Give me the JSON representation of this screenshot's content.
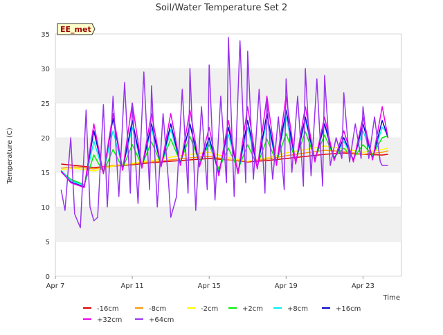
{
  "chart_data": {
    "type": "line",
    "title": "Soil/Water Temperature Set 2",
    "xlabel": "Time",
    "ylabel": "Temperature (C)",
    "badge": "EE_met",
    "x_unit": "days since Apr 7",
    "xlim": [
      0,
      18
    ],
    "ylim": [
      0,
      35
    ],
    "y_ticks": [
      0,
      5,
      10,
      15,
      20,
      25,
      30,
      35
    ],
    "x_ticks": [
      {
        "value": 0,
        "label": "Apr 7"
      },
      {
        "value": 4,
        "label": "Apr 11"
      },
      {
        "value": 8,
        "label": "Apr 15"
      },
      {
        "value": 12,
        "label": "Apr 19"
      },
      {
        "value": 16,
        "label": "Apr 23"
      }
    ],
    "grid": "horizontal bands",
    "legend_position": "bottom",
    "series": [
      {
        "name": "-16cm",
        "color": "#dd0000",
        "x": [
          0.3,
          1,
          2,
          3,
          4,
          5,
          6,
          7,
          8,
          9,
          10,
          11,
          12,
          13,
          14,
          15,
          16,
          17,
          17.3
        ],
        "y": [
          16.2,
          16.0,
          15.7,
          15.9,
          16.1,
          16.4,
          16.6,
          16.8,
          17.0,
          16.8,
          16.5,
          16.7,
          17.0,
          17.3,
          17.6,
          17.8,
          17.6,
          17.5,
          17.6
        ]
      },
      {
        "name": "-8cm",
        "color": "#ff9900",
        "x": [
          0.3,
          1,
          2,
          3,
          4,
          5,
          6,
          7,
          8,
          9,
          10,
          11,
          12,
          13,
          14,
          15,
          16,
          17,
          17.3
        ],
        "y": [
          15.6,
          15.8,
          15.5,
          16.0,
          16.2,
          16.5,
          16.8,
          17.1,
          17.3,
          16.8,
          16.6,
          16.9,
          17.4,
          17.8,
          18.2,
          18.0,
          17.6,
          17.9,
          18.1
        ]
      },
      {
        "name": "-2cm",
        "color": "#ffff00",
        "x": [
          0.3,
          1,
          2,
          3,
          4,
          5,
          6,
          7,
          8,
          9,
          10,
          11,
          12,
          13,
          14,
          15,
          16,
          17,
          17.3
        ],
        "y": [
          15.4,
          15.6,
          15.2,
          15.9,
          16.3,
          16.7,
          17.2,
          17.6,
          17.9,
          17.1,
          16.6,
          17.1,
          17.8,
          18.3,
          18.8,
          18.4,
          17.9,
          18.3,
          18.5
        ]
      },
      {
        "name": "+2cm",
        "color": "#00ee00",
        "x": [
          0.3,
          0.8,
          1.5,
          2,
          2.5,
          3,
          3.5,
          4,
          4.5,
          5,
          5.5,
          6,
          6.5,
          7,
          7.5,
          8,
          8.5,
          9,
          9.5,
          10,
          10.5,
          11,
          11.5,
          12,
          12.5,
          13,
          13.5,
          14,
          14.5,
          15,
          15.5,
          16,
          16.5,
          17,
          17.3
        ],
        "y": [
          15.2,
          14.0,
          13.2,
          17.5,
          15.0,
          18.3,
          15.6,
          19.0,
          16.0,
          19.4,
          16.2,
          19.8,
          16.5,
          20.2,
          16.5,
          19.0,
          15.5,
          18.5,
          15.4,
          19.0,
          16.0,
          19.8,
          16.5,
          20.6,
          16.8,
          20.9,
          17.0,
          20.4,
          17.2,
          18.5,
          17.0,
          19.0,
          17.5,
          20.0,
          20.3
        ]
      },
      {
        "name": "+8cm",
        "color": "#00eeee",
        "x": [
          0.3,
          0.8,
          1.5,
          2,
          2.5,
          3,
          3.5,
          4,
          4.5,
          5,
          5.5,
          6,
          6.5,
          7,
          7.5,
          8,
          8.5,
          9,
          9.5,
          10,
          10.5,
          11,
          11.5,
          12,
          12.5,
          13,
          13.5,
          14,
          14.5,
          15,
          15.5,
          16,
          16.5,
          17,
          17.3
        ],
        "y": [
          15.3,
          13.8,
          13.1,
          19.5,
          15.0,
          21.0,
          15.6,
          21.5,
          15.8,
          21.3,
          16.0,
          21.2,
          16.3,
          21.8,
          16.2,
          19.5,
          15.0,
          20.5,
          15.0,
          21.5,
          15.8,
          22.5,
          16.3,
          23.0,
          16.5,
          22.5,
          16.8,
          21.8,
          17.0,
          19.5,
          16.8,
          21.0,
          17.2,
          21.5,
          20.5
        ]
      },
      {
        "name": "+16cm",
        "color": "#0000cc",
        "x": [
          0.3,
          0.8,
          1.5,
          2,
          2.5,
          3,
          3.5,
          4,
          4.5,
          5,
          5.5,
          6,
          6.5,
          7,
          7.5,
          8,
          8.5,
          9,
          9.5,
          10,
          10.5,
          11,
          11.5,
          12,
          12.5,
          13,
          13.5,
          14,
          14.5,
          15,
          15.5,
          16,
          16.5,
          17,
          17.3
        ],
        "y": [
          15.1,
          13.6,
          12.9,
          21.0,
          14.9,
          22.8,
          15.4,
          22.5,
          15.7,
          22.0,
          15.9,
          22.0,
          16.2,
          22.0,
          16.0,
          20.0,
          14.8,
          21.5,
          14.9,
          22.5,
          15.6,
          23.5,
          16.2,
          24.0,
          16.4,
          23.0,
          16.7,
          22.0,
          16.9,
          20.0,
          16.7,
          22.0,
          17.0,
          22.5,
          20.0
        ]
      },
      {
        "name": "+32cm",
        "color": "#ee00ee",
        "x": [
          0.3,
          0.8,
          1.5,
          2,
          2.5,
          3,
          3.5,
          4,
          4.5,
          5,
          5.5,
          6,
          6.5,
          7,
          7.5,
          8,
          8.5,
          9,
          9.5,
          10,
          10.5,
          11,
          11.5,
          12,
          12.5,
          13,
          13.5,
          14,
          14.5,
          15,
          15.5,
          16,
          16.5,
          17,
          17.3
        ],
        "y": [
          15.2,
          13.5,
          12.8,
          22.0,
          14.8,
          23.5,
          15.3,
          25.0,
          15.6,
          23.5,
          15.8,
          23.5,
          16.0,
          24.0,
          15.8,
          21.5,
          14.5,
          22.5,
          14.8,
          24.5,
          15.5,
          26.0,
          16.0,
          26.0,
          16.2,
          24.5,
          16.5,
          23.0,
          16.7,
          21.0,
          16.5,
          23.0,
          16.8,
          24.5,
          20.0
        ]
      },
      {
        "name": "+64cm",
        "color": "#9933ee",
        "x": [
          0.3,
          0.5,
          0.8,
          1.0,
          1.3,
          1.6,
          1.8,
          2.0,
          2.2,
          2.5,
          2.7,
          3.0,
          3.3,
          3.6,
          3.9,
          4.0,
          4.3,
          4.6,
          4.9,
          5.0,
          5.3,
          5.6,
          5.9,
          6.0,
          6.3,
          6.6,
          6.9,
          7.0,
          7.3,
          7.6,
          7.9,
          8.0,
          8.3,
          8.6,
          8.9,
          9.0,
          9.3,
          9.6,
          9.9,
          10.0,
          10.3,
          10.6,
          10.9,
          11.0,
          11.3,
          11.6,
          11.9,
          12.0,
          12.3,
          12.6,
          12.9,
          13.0,
          13.3,
          13.6,
          13.9,
          14.0,
          14.3,
          14.6,
          14.9,
          15.0,
          15.3,
          15.6,
          15.9,
          16.0,
          16.3,
          16.6,
          16.9,
          17.0,
          17.3
        ],
        "y": [
          12.5,
          9.5,
          20.0,
          9.0,
          7.0,
          24.0,
          10.0,
          8.0,
          8.5,
          24.8,
          10.0,
          26.0,
          11.5,
          28.0,
          12.0,
          25.0,
          10.5,
          29.5,
          12.5,
          27.5,
          10.0,
          23.5,
          13.0,
          8.5,
          11.5,
          27.0,
          12.0,
          30.0,
          9.5,
          24.5,
          12.5,
          30.5,
          11.0,
          26.0,
          13.5,
          34.5,
          11.5,
          34.0,
          13.5,
          32.5,
          14.0,
          27.0,
          12.0,
          25.5,
          14.0,
          23.0,
          12.5,
          28.5,
          15.0,
          26.0,
          13.0,
          30.0,
          14.5,
          28.5,
          13.0,
          29.0,
          16.0,
          20.0,
          17.0,
          26.5,
          16.5,
          22.0,
          17.0,
          24.5,
          17.0,
          23.0,
          16.5,
          16.0,
          16.0
        ]
      }
    ]
  }
}
